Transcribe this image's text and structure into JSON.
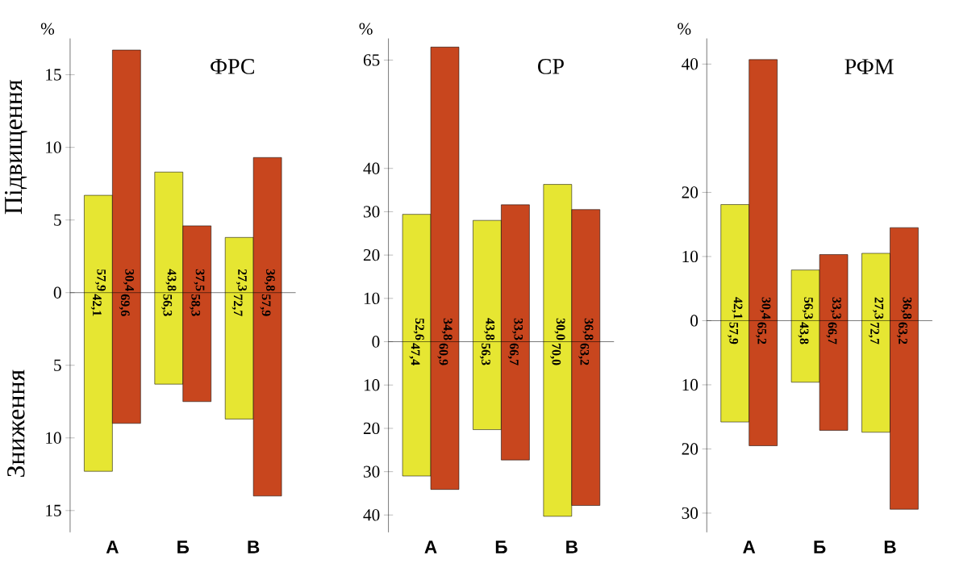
{
  "chart_data": [
    {
      "type": "bar",
      "title": "ФРС",
      "ylabel": "%",
      "categories": [
        "А",
        "Б",
        "В"
      ],
      "annotations": [
        "57,9",
        "42,1",
        "30,4",
        "69,6",
        "43,8",
        "56,3",
        "37,5",
        "58,3",
        "27,3",
        "72,7",
        "36,8",
        "57,9",
        "Підвищення",
        "Зниження"
      ],
      "ylim": [
        -16.5,
        17.5
      ],
      "yticks": [
        {
          "value": -15,
          "label": "15"
        },
        {
          "value": -10,
          "label": "10"
        },
        {
          "value": -5,
          "label": "5"
        },
        0,
        5,
        10,
        15
      ],
      "series": [
        {
          "color": "#e6e632",
          "base": [
            -12.3,
            -6.3,
            -8.7
          ],
          "values": [
            19.0,
            14.6,
            12.5
          ]
        },
        {
          "color": "#c8461e",
          "base": [
            -9.0,
            -7.5,
            -14.0
          ],
          "values": [
            25.7,
            12.1,
            23.3
          ]
        }
      ]
    },
    {
      "type": "bar",
      "title": "СР",
      "ylabel": "%",
      "categories": [
        "А",
        "Б",
        "В"
      ],
      "annotations": [
        "52,6",
        "47,4",
        "34,8",
        "60,9",
        "43,8",
        "56,3",
        "33,3",
        "66,7",
        "30,0",
        "70,0",
        "36,8",
        "63,2"
      ],
      "ylim": [
        -44,
        70
      ],
      "yticks": [
        {
          "value": -40,
          "label": "40"
        },
        {
          "value": -30,
          "label": "30"
        },
        {
          "value": -20,
          "label": "20"
        },
        {
          "value": -10,
          "label": "10"
        },
        0,
        10,
        20,
        30,
        40,
        65
      ],
      "series": [
        {
          "color": "#e6e632",
          "base": [
            -31.0,
            -20.3,
            -40.3
          ],
          "values": [
            60.4,
            48.3,
            76.6
          ]
        },
        {
          "color": "#c8461e",
          "base": [
            -34.1,
            -27.3,
            -37.8
          ],
          "values": [
            102.1,
            58.9,
            68.3
          ]
        }
      ]
    },
    {
      "type": "bar",
      "title": "РФМ",
      "ylabel": "%",
      "categories": [
        "А",
        "Б",
        "В"
      ],
      "annotations": [
        "42,1",
        "57,9",
        "30,4",
        "65,2",
        "56,3",
        "43,8",
        "33,3",
        "66,7",
        "27,3",
        "72,7",
        "36,8",
        "63,2"
      ],
      "ylim": [
        -33,
        44
      ],
      "yticks": [
        {
          "value": -30,
          "label": "30"
        },
        {
          "value": -20,
          "label": "20"
        },
        {
          "value": -10,
          "label": "10"
        },
        0,
        10,
        20,
        40
      ],
      "series": [
        {
          "color": "#e6e632",
          "base": [
            -15.8,
            -9.6,
            -17.4
          ],
          "values": [
            33.9,
            17.5,
            27.9
          ]
        },
        {
          "color": "#c8461e",
          "base": [
            -19.5,
            -17.1,
            -29.4
          ],
          "values": [
            60.2,
            27.4,
            43.9
          ]
        }
      ]
    }
  ]
}
